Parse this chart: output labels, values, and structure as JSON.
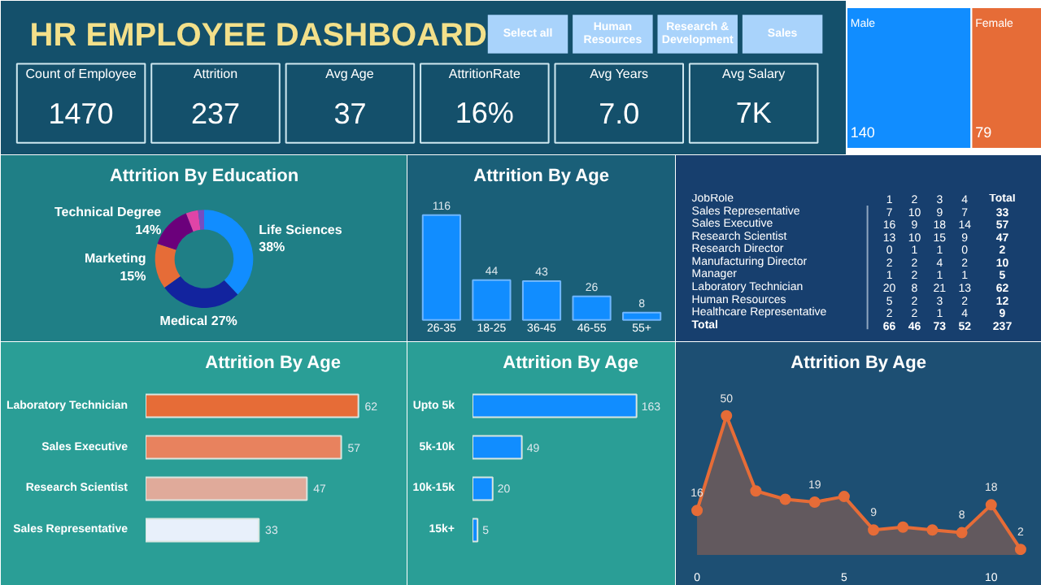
{
  "chart_data": [
    {
      "type": "other",
      "title": "HR EMPLOYEE DASHBOARD",
      "categories": [
        "Count of Employee",
        "Attrition",
        "Avg Age",
        "AttritionRate",
        "Avg Years",
        "Avg Salary"
      ],
      "values": [
        1470,
        237,
        37,
        16,
        7.0,
        7000
      ],
      "value_labels": [
        "1470",
        "237",
        "37",
        "16%",
        "7.0",
        "7K"
      ],
      "annotations": [
        "Select all",
        "Human Resources",
        "Research & Development",
        "Sales"
      ]
    },
    {
      "type": "other",
      "categories": [
        "Male",
        "Female"
      ],
      "values": [
        140,
        79
      ],
      "colors": [
        "#118dff",
        "#e66c37"
      ],
      "data_labels": true
    },
    {
      "type": "donut",
      "title": "Attrition By Education",
      "categories": [
        "Life Sciences",
        "Medical",
        "Marketing",
        "Technical Degree",
        null,
        null
      ],
      "values": [
        38,
        27,
        15,
        14,
        4,
        2
      ],
      "value_labels": [
        "38%",
        "27%",
        "15%",
        "14%",
        null,
        null
      ],
      "colors": [
        "#118dff",
        "#12239e",
        "#e66c37",
        "#6b007b",
        "#e044a7",
        "#744ec2"
      ]
    },
    {
      "type": "bar",
      "title": "Attrition By Age",
      "categories": [
        "26-35",
        "18-25",
        "36-45",
        "46-55",
        "55+"
      ],
      "values": [
        116,
        44,
        43,
        26,
        8
      ],
      "color": "#118dff",
      "data_labels": true
    },
    {
      "type": "heatmap",
      "ylabel": "JobRole",
      "categories": [
        "1",
        "2",
        "3",
        "4",
        "Total"
      ],
      "y_categories": [
        "Sales Representative",
        "Sales Executive",
        "Research Scientist",
        "Research Director",
        "Manufacturing Director",
        "Manager",
        "Laboratory Technician",
        "Human Resources",
        "Healthcare Representative",
        "Total"
      ],
      "data_labels": true,
      "cells": [
        [
          7,
          10,
          9,
          7,
          33
        ],
        [
          16,
          9,
          18,
          14,
          57
        ],
        [
          13,
          10,
          15,
          9,
          47
        ],
        [
          0,
          1,
          1,
          0,
          2
        ],
        [
          2,
          2,
          4,
          2,
          10
        ],
        [
          1,
          2,
          1,
          1,
          5
        ],
        [
          20,
          8,
          21,
          13,
          62
        ],
        [
          5,
          2,
          3,
          2,
          12
        ],
        [
          2,
          2,
          1,
          4,
          9
        ],
        [
          66,
          46,
          73,
          52,
          237
        ]
      ]
    },
    {
      "type": "bar",
      "orientation": "horizontal",
      "title": "Attrition By Age",
      "categories": [
        "Laboratory Technician",
        "Sales Executive",
        "Research Scientist",
        "Sales Representative"
      ],
      "values": [
        62,
        57,
        47,
        33
      ],
      "colors": [
        "#e66c37",
        "#e8825e",
        "#e0aa9a",
        "#e8f0fb"
      ],
      "data_labels": true
    },
    {
      "type": "bar",
      "orientation": "horizontal",
      "title": "Attrition By Age",
      "categories": [
        "Upto 5k",
        "5k-10k",
        "10k-15k",
        "15k+"
      ],
      "values": [
        163,
        49,
        20,
        5
      ],
      "color": "#118dff",
      "data_labels": true
    },
    {
      "type": "area",
      "title": "Attrition By Age",
      "x": [
        0,
        1,
        2,
        3,
        4,
        5,
        6,
        7,
        8,
        9,
        10,
        11
      ],
      "values": [
        16,
        50,
        23,
        20,
        19,
        21,
        9,
        10,
        9,
        8,
        18,
        2
      ],
      "value_labels": [
        "16",
        "50",
        null,
        null,
        "19",
        null,
        "9",
        null,
        null,
        "8",
        "18",
        "2"
      ],
      "color": "#e66c37",
      "marker": "circle",
      "xlim": [
        -0.5,
        11.5
      ],
      "xticks": [
        0,
        5,
        10
      ]
    }
  ]
}
